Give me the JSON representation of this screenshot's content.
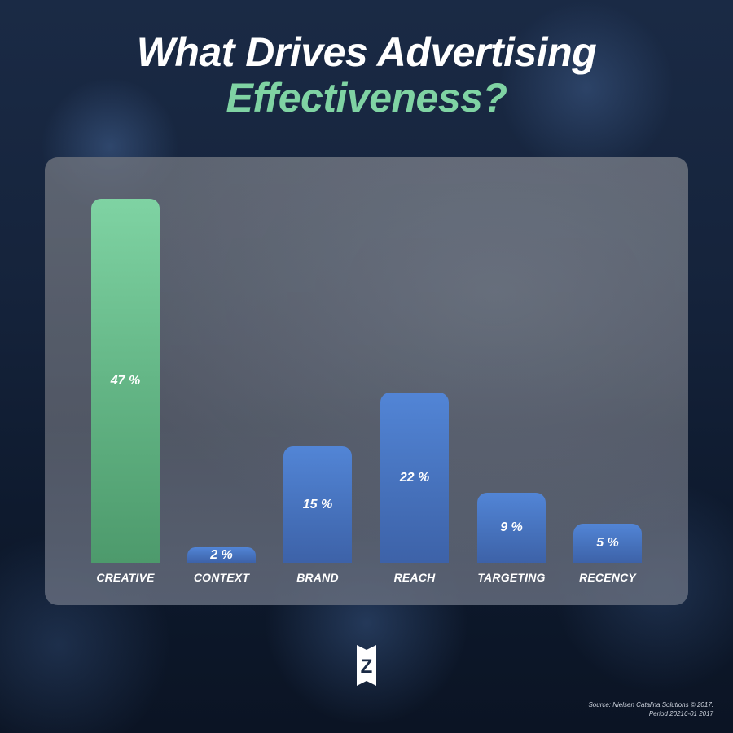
{
  "title": {
    "line1": "What Drives Advertising",
    "line2": "Effectiveness?"
  },
  "colors": {
    "title_line1": "#ffffff",
    "title_line2": "#7fd3a3",
    "highlight_bar": "#64b686",
    "bar": "#4570ba",
    "background": "#15233b"
  },
  "chart_data": {
    "type": "bar",
    "title": "What Drives Advertising Effectiveness?",
    "categories": [
      "CREATIVE",
      "CONTEXT",
      "BRAND",
      "REACH",
      "TARGETING",
      "RECENCY"
    ],
    "values": [
      47,
      2,
      15,
      22,
      9,
      5
    ],
    "value_labels": [
      "47 %",
      "2 %",
      "15 %",
      "22 %",
      "9 %",
      "5 %"
    ],
    "unit": "%",
    "xlabel": "",
    "ylabel": "",
    "ylim": [
      0,
      47
    ],
    "grid": false,
    "legend": null,
    "highlighted_category": "CREATIVE"
  },
  "logo": {
    "icon": "z-logo-icon",
    "letter": "Z"
  },
  "source": {
    "line1": "Source: Nielsen Catalina Solutions © 2017.",
    "line2": "Period 20216-01 2017"
  }
}
